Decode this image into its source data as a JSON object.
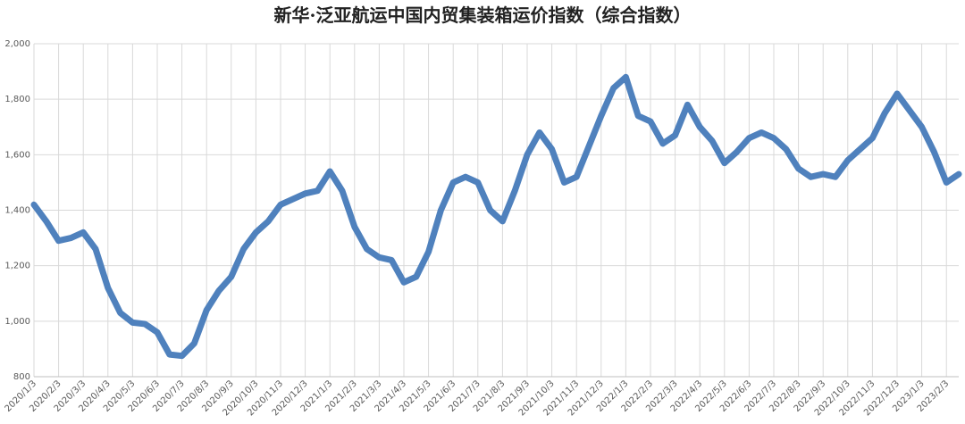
{
  "chart_data": {
    "type": "line",
    "title": "新华·泛亚航运中国内贸集装箱运价指数（综合指数）",
    "categories": [
      "2020/1/3",
      null,
      "2020/2/3",
      null,
      "2020/3/3",
      null,
      "2020/4/3",
      null,
      "2020/5/3",
      null,
      "2020/6/3",
      null,
      "2020/7/3",
      null,
      "2020/8/3",
      null,
      "2020/9/3",
      null,
      "2020/10/3",
      null,
      "2020/11/3",
      null,
      "2020/12/3",
      null,
      "2021/1/3",
      null,
      "2021/2/3",
      null,
      "2021/3/3",
      null,
      "2021/4/3",
      null,
      "2021/5/3",
      null,
      "2021/6/3",
      null,
      "2021/7/3",
      null,
      "2021/8/3",
      null,
      "2021/9/3",
      null,
      "2021/10/3",
      null,
      "2021/11/3",
      null,
      "2021/12/3",
      null,
      "2022/1/3",
      null,
      "2022/2/3",
      null,
      "2022/3/3",
      null,
      "2022/4/3",
      null,
      "2022/5/3",
      null,
      "2022/6/3",
      null,
      "2022/7/3",
      null,
      "2022/8/3",
      null,
      "2022/9/3",
      null,
      "2022/10/3",
      null,
      "2022/11/3",
      null,
      "2022/12/3",
      null,
      "2023/1/3",
      null,
      "2023/2/3",
      null
    ],
    "series": [
      {
        "name": "综合指数",
        "color": "#4f81bd",
        "values": [
          1420,
          1360,
          1290,
          1300,
          1320,
          1260,
          1120,
          1030,
          995,
          990,
          960,
          880,
          875,
          920,
          1040,
          1110,
          1160,
          1260,
          1320,
          1360,
          1420,
          1440,
          1460,
          1470,
          1540,
          1470,
          1340,
          1260,
          1230,
          1220,
          1140,
          1160,
          1250,
          1400,
          1500,
          1520,
          1500,
          1400,
          1360,
          1470,
          1600,
          1680,
          1620,
          1500,
          1520,
          1630,
          1740,
          1840,
          1880,
          1740,
          1720,
          1640,
          1670,
          1780,
          1700,
          1650,
          1570,
          1610,
          1660,
          1680,
          1660,
          1620,
          1550,
          1520,
          1530,
          1520,
          1580,
          1620,
          1660,
          1750,
          1820,
          1760,
          1700,
          1610,
          1500,
          1530
        ]
      }
    ],
    "ylim": [
      800,
      2000
    ],
    "yticks": [
      {
        "value": 800,
        "label": "800"
      },
      {
        "value": 1000,
        "label": "1,000"
      },
      {
        "value": 1200,
        "label": "1,200"
      },
      {
        "value": 1400,
        "label": "1,400"
      },
      {
        "value": 1600,
        "label": "1,600"
      },
      {
        "value": 1800,
        "label": "1,800"
      },
      {
        "value": 2000,
        "label": "2,000"
      }
    ],
    "grid": true
  }
}
